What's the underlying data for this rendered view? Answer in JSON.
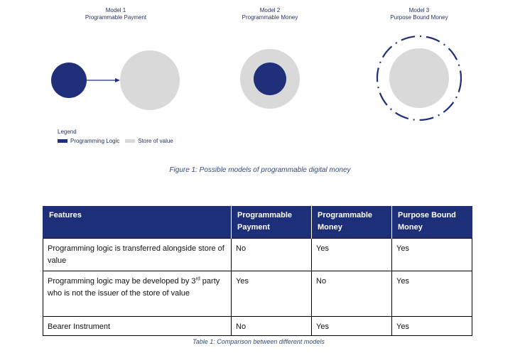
{
  "models": [
    {
      "title": "Model 1",
      "subtitle": "Programmable Payment"
    },
    {
      "title": "Model 2",
      "subtitle": "Programmable Money"
    },
    {
      "title": "Model 3",
      "subtitle": "Purpose Bound Money"
    }
  ],
  "legend": {
    "title": "Legend",
    "items": [
      {
        "label": "Programming Logic",
        "color": "#1f2f7a"
      },
      {
        "label": "Store of value",
        "color": "#d9d9d9"
      }
    ]
  },
  "colors": {
    "logic": "#1f2f7a",
    "store": "#d9d9d9",
    "header_bg": "#1e2f7a",
    "caption": "#2f4b7c"
  },
  "figure_caption": "Figure 1: Possible models of programmable digital money",
  "table": {
    "headers": [
      "Features",
      "Programmable Payment",
      "Programmable Money",
      "Purpose Bound Money"
    ],
    "rows": [
      {
        "feature": "Programming logic is transferred alongside store of value",
        "values": [
          "No",
          "Yes",
          "Yes"
        ]
      },
      {
        "feature_pre": "Programming logic may be developed by 3",
        "feature_sup": "rd",
        "feature_post": " party who is not the issuer of the store of value",
        "values": [
          "Yes",
          "No",
          "Yes"
        ]
      },
      {
        "feature": "Bearer Instrument",
        "values": [
          "No",
          "Yes",
          "Yes"
        ]
      }
    ]
  },
  "table_caption": "Table 1: Comparison between different models"
}
